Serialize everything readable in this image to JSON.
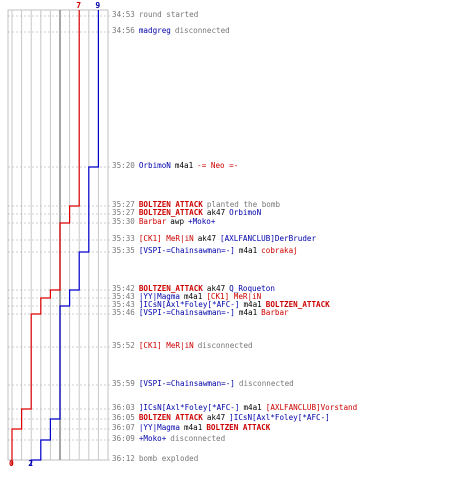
{
  "colors": {
    "blue_team": "#0000cc",
    "red_team": "#dd0000",
    "gray_text": "#777777"
  },
  "score": {
    "blue_start": "9",
    "red_start": "7",
    "blue_end": "2",
    "red_end": "0"
  },
  "events": [
    {
      "time": "34:53",
      "parts": [
        {
          "text": "round started",
          "color": "gray"
        }
      ]
    },
    {
      "time": "34:56",
      "parts": [
        {
          "text": "madgreg",
          "color": "blue"
        },
        {
          "text": "disconnected",
          "color": "gray"
        }
      ]
    },
    {
      "time": "35:20",
      "parts": [
        {
          "text": "OrbimoN",
          "color": "blue"
        },
        {
          "text": "m4a1",
          "color": "text"
        },
        {
          "text": "-= Neo =-",
          "color": "red"
        }
      ]
    },
    {
      "time": "35:27",
      "parts": [
        {
          "text": "BOLTZEN ATTACK",
          "color": "red",
          "bold": true
        },
        {
          "text": "planted the bomb",
          "color": "gray"
        }
      ]
    },
    {
      "time": "35:27",
      "parts": [
        {
          "text": "BOLTZEN_ATTACK",
          "color": "red",
          "bold": true
        },
        {
          "text": "ak47",
          "color": "text"
        },
        {
          "text": "OrbimoN",
          "color": "blue"
        }
      ]
    },
    {
      "time": "35:30",
      "parts": [
        {
          "text": "Barbar",
          "color": "red"
        },
        {
          "text": "awp",
          "color": "text"
        },
        {
          "text": "+Moko+",
          "color": "blue"
        }
      ]
    },
    {
      "time": "35:33",
      "parts": [
        {
          "text": "[CK1] MeR|iN",
          "color": "red"
        },
        {
          "text": "ak47",
          "color": "text"
        },
        {
          "text": "[AXLFANCLUB]DerBruder",
          "color": "blue"
        }
      ]
    },
    {
      "time": "35:35",
      "parts": [
        {
          "text": "[VSPI-=Chainsawman=-]",
          "color": "blue"
        },
        {
          "text": "m4a1",
          "color": "text"
        },
        {
          "text": "cobrakaj",
          "color": "red"
        }
      ]
    },
    {
      "time": "35:42",
      "parts": [
        {
          "text": "BOLTZEN_ATTACK",
          "color": "red",
          "bold": true
        },
        {
          "text": "ak47",
          "color": "text"
        },
        {
          "text": "Q_Roqueton",
          "color": "blue"
        }
      ]
    },
    {
      "time": "35:43",
      "parts": [
        {
          "text": "|YY|Magma",
          "color": "blue"
        },
        {
          "text": "m4a1",
          "color": "text"
        },
        {
          "text": "[CK1] MeR|iN",
          "color": "red"
        }
      ]
    },
    {
      "time": "35:43",
      "parts": [
        {
          "text": "]ICsN[Axl*Foley[*AFC-]",
          "color": "blue"
        },
        {
          "text": "m4a1",
          "color": "text"
        },
        {
          "text": "BOLTZEN_ATTACK",
          "color": "red",
          "bold": true
        }
      ]
    },
    {
      "time": "35:46",
      "parts": [
        {
          "text": "[VSPI-=Chainsawman=-]",
          "color": "blue"
        },
        {
          "text": "m4a1",
          "color": "text"
        },
        {
          "text": "Barbar",
          "color": "red"
        }
      ]
    },
    {
      "time": "35:52",
      "parts": [
        {
          "text": "[CK1] MeR|iN",
          "color": "red"
        },
        {
          "text": "disconnected",
          "color": "gray"
        }
      ]
    },
    {
      "time": "35:59",
      "parts": [
        {
          "text": "[VSPI-=Chainsawman=-]",
          "color": "blue"
        },
        {
          "text": "disconnected",
          "color": "gray"
        }
      ]
    },
    {
      "time": "36:03",
      "parts": [
        {
          "text": "]ICsN[Axl*Foley[*AFC-]",
          "color": "blue"
        },
        {
          "text": "m4a1",
          "color": "text"
        },
        {
          "text": "[AXLFANCLUB]Vorstand",
          "color": "red"
        }
      ]
    },
    {
      "time": "36:05",
      "parts": [
        {
          "text": "BOLTZEN ATTACK",
          "color": "red",
          "bold": true
        },
        {
          "text": "ak47",
          "color": "text"
        },
        {
          "text": "]ICsN[Axl*Foley[*AFC-]",
          "color": "blue"
        }
      ]
    },
    {
      "time": "36:07",
      "parts": [
        {
          "text": "|YY|Magma",
          "color": "blue"
        },
        {
          "text": "m4a1",
          "color": "text"
        },
        {
          "text": "BOLTZEN ATTACK",
          "color": "red",
          "bold": true
        }
      ]
    },
    {
      "time": "36:09",
      "parts": [
        {
          "text": "+Moko+",
          "color": "blue"
        },
        {
          "text": "disconnected",
          "color": "gray"
        }
      ]
    },
    {
      "time": "36:12",
      "parts": [
        {
          "text": "bomb exploded",
          "color": "gray"
        }
      ]
    }
  ],
  "blue_steps": [
    9,
    9,
    8,
    8,
    8,
    8,
    8,
    7,
    6,
    6,
    5,
    5,
    5,
    5,
    5,
    4,
    4,
    3,
    2
  ],
  "red_steps": [
    7,
    7,
    7,
    6,
    6,
    5,
    5,
    5,
    4,
    3,
    3,
    2,
    2,
    2,
    1,
    1,
    0,
    0,
    0
  ]
}
